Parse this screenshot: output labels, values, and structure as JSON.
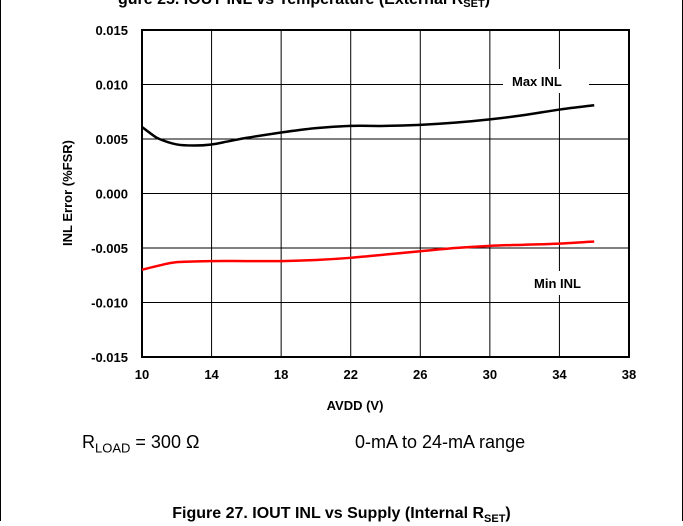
{
  "header_text": "gure 25. IOUT INL vs Temperature (External R",
  "header_sub": "SET",
  "chart_data": {
    "type": "line",
    "xlabel": "AVDD (V)",
    "ylabel": "INL Error (%FSR)",
    "xlim": [
      10,
      38
    ],
    "ylim": [
      -0.015,
      0.015
    ],
    "x_ticks": [
      10,
      14,
      18,
      22,
      26,
      30,
      34,
      38
    ],
    "y_ticks": [
      "0.015",
      "0.010",
      "0.005",
      "0.000",
      "-0.005",
      "-0.010",
      "-0.015"
    ],
    "y_tick_values": [
      0.015,
      0.01,
      0.005,
      0.0,
      -0.005,
      -0.01,
      -0.015
    ],
    "grid": true,
    "series": [
      {
        "name": "Max INL",
        "color": "#000000",
        "x": [
          10,
          10.5,
          11,
          12,
          13,
          14,
          15,
          16,
          18,
          20,
          22,
          24,
          26,
          28,
          30,
          32,
          34,
          36
        ],
        "y": [
          0.0061,
          0.0055,
          0.005,
          0.0045,
          0.0044,
          0.0045,
          0.0048,
          0.0051,
          0.0056,
          0.006,
          0.0062,
          0.0062,
          0.0063,
          0.0065,
          0.0068,
          0.0072,
          0.0077,
          0.0081
        ]
      },
      {
        "name": "Min INL",
        "color": "#ff0000",
        "x": [
          10,
          11,
          12,
          14,
          16,
          18,
          20,
          22,
          24,
          26,
          28,
          30,
          32,
          34,
          36
        ],
        "y": [
          -0.007,
          -0.0066,
          -0.0063,
          -0.0062,
          -0.0062,
          -0.0062,
          -0.0061,
          -0.0059,
          -0.0056,
          -0.0053,
          -0.005,
          -0.0048,
          -0.0047,
          -0.0046,
          -0.0044
        ]
      }
    ]
  },
  "conditions": {
    "rload_prefix": "R",
    "rload_sub": "LOAD",
    "rload_value": " = 300 Ω",
    "range": "0-mA to 24-mA range"
  },
  "caption_text": "Figure 27. IOUT INL vs Supply (Internal R",
  "caption_sub": "SET",
  "caption_close": ")"
}
